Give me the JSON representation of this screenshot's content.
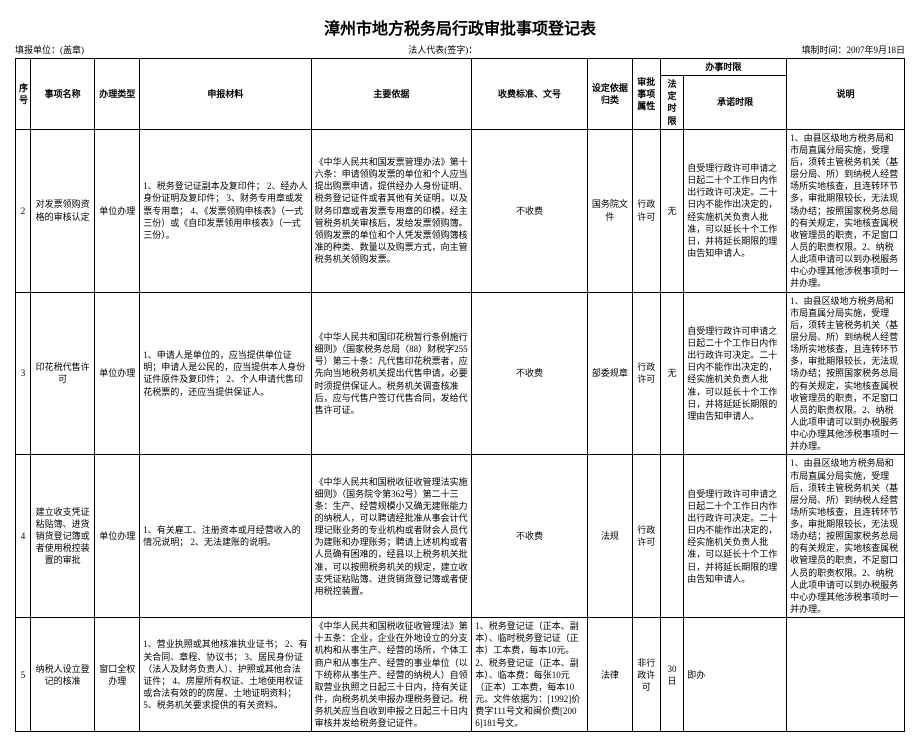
{
  "title": "漳州市地方税务局行政审批事项登记表",
  "header": {
    "unit": "填报单位：(盖章)",
    "rep": "法人代表(签字)：",
    "date": "填制时间：2007年9月18日"
  },
  "columns": {
    "seq": "序号",
    "name": "事项名称",
    "type": "办理类型",
    "materials": "申报材料",
    "basis": "主要依据",
    "fee": "收费标准、文号",
    "doc": "设定依据归类",
    "class": "审批事项属性",
    "time_group": "办事时限",
    "ltime": "法定时限",
    "ptime": "承诺时限",
    "note": "说明"
  },
  "rows": [
    {
      "seq": "2",
      "name": "对发票领购资格的审核认定",
      "type": "单位办理",
      "materials": "1、税务登记证副本及复印件；\n2、经办人身份证明及复印件；\n3、财务专用章或发票专用章；\n4、《发票领购申核表》（一式三份）或《自印发票领用申核表》（一式三份）。",
      "basis": "《中华人民共和国发票管理办法》第十六条：申请领购发票的单位和个人应当提出购票申请，提供经办人身份证明、税务登记证件或者其他有关证明，以及财务印章或者发票专用章的印模，经主管税务机关审核后，发给发票领购簿。领购发票的单位和个人凭发票领购簿核准的种类、数量以及购票方式，向主管税务机关领购发票。",
      "fee": "不收费",
      "doc": "国务院文件",
      "class": "行政许可",
      "ltime": "无",
      "ptime": "自受理行政许可申请之日起二十个工作日内作出行政许可决定。二十日内不能作出决定的，经实施机关负责人批准，可以延长十个工作日，并将延长期限的理由告知申请人。",
      "note": "1、由县区级地方税务局和市局直属分局实施，受理后，须转主管税务机关（基层分局、所）到纳税人经营场所实地核查，且连转环节多，审批期限较长，无法现场办结；按照国家税务总局的有关规定，实地核查属税收管理员的职责，不足窗口人员的职责权限。2、纳税人此项申请可以到办税服务中心办理其他涉税事项时一并办理。"
    },
    {
      "seq": "3",
      "name": "印花税代售许可",
      "type": "单位办理",
      "materials": "1、申请人是单位的，应当提供单位证明；申请人是公民的，应当提供本人身份证件原件及复印件；\n2、个人申请代售印花税票的，还应当提供保证人。",
      "basis": "《中华人民共和国印花税暂行条例施行细则》（国家税务总局（88）财税字255号）第三十条：凡代售印花税票者，应先向当地税务机关提出代售申请，必要时须提供保证人。税务机关调查核准后，应与代售户签订代售合同，发给代售许可证。",
      "fee": "不收费",
      "doc": "部委规章",
      "class": "行政许可",
      "ltime": "无",
      "ptime": "自受理行政许可申请之日起二十个工作日内作出行政许可决定。二十日内不能作出决定的，经实施机关负责人批准，可以延长十个工作日，并将延延长期限的理由告知申请人。",
      "note": "1、由县区级地方税务局和市局直属分局实施，受理后，须转主管税务机关（基层分局、所）到纳税人经营场所实地核查，且连转环节多，审批期限较长，无法现场办结；按照国家税务总局的有关规定，实地核查属税收管理员的职责，不足窗口人员的职责权限。2、纳税人此项申请可以到办税服务中心办理其他涉税事项时一并办理。"
    },
    {
      "seq": "4",
      "name": "建立收支凭证粘贴簿、进货销货登记簿或者使用税控装置的审批",
      "type": "单位办理",
      "materials": "1、有关雇工、注册资本或月经营收入的情况说明；\n2、无法建账的说明。",
      "basis": "《中华人民共和国税收征收管理法实施细则》（国务院令第362号）第二十三条：生产、经营规模小又确无建账能力的纳税人，可以聘请经批准从事会计代理记账业务的专业机构或者财会人员代为建账和办理账务；聘请上述机构或者人员确有困难的，经县以上税务机关批准，可以按照税务机关的规定，建立收支凭证粘贴簿、进货销货登记簿或者使用税控装置。",
      "fee": "不收费",
      "doc": "法规",
      "class": "行政许可",
      "ltime": "",
      "ptime": "自受理行政许可申请之日起二十个工作日内作出行政许可决定。二十日内不能作出决定的，经实施机关负责人批准，可以延长十个工作日，并将延长期限的理由告知申请人。",
      "note": "1、由县区级地方税务局和市局直属分局实施，受理后，须转主管税务机关（基层分局、所）到纳税人经营场所实地核查，且连转环节多，审批期限较长，无法现场办结；按照国家税务总局的有关规定，实地核查属税收管理员的职责，不足窗口人员的职责权限。2、纳税人此项申请可以到办税服务中心办理其他涉税事项时一并办理。"
    },
    {
      "seq": "5",
      "name": "纳税人设立登记的核准",
      "type": "窗口全权办理",
      "materials": "1、营业执照或其他核准执业证书；\n2、有关合同、章程、协议书；\n3、居民身份证（法人及财务负责人）、护照或其他合法证件；\n4、房屋所有权证、土地使用权证或合法有效的的房屋、土地证明资料；\n5、税务机关要求提供的有关资料。",
      "basis": "《中华人民共和国税收征收管理法》第十五条：企业，企业在外地设立的分支机构和从事生产、经营的场所，个体工商户和从事生产、经营的事业单位（以下统称从事生产、经营的纳税人）自领取营业执照之日起三十日内，持有关证件，向税务机关申报办理税务登记。税务机关应当自收到申报之日起三十日内审核并发给税务登记证件。",
      "fee": "1、税务登记证（正本、副本）、临时税务登记证（正本）工本费，每本10元。2、税务登记证（正本、副本）、临本费：每张10元（正本）工本费，每本10元。文件依据为：[1992]价费字111号文和闽价费[2006]181号文。",
      "doc": "法律",
      "class": "非行政许可",
      "ltime": "30日",
      "ptime": "即办",
      "note": ""
    }
  ]
}
